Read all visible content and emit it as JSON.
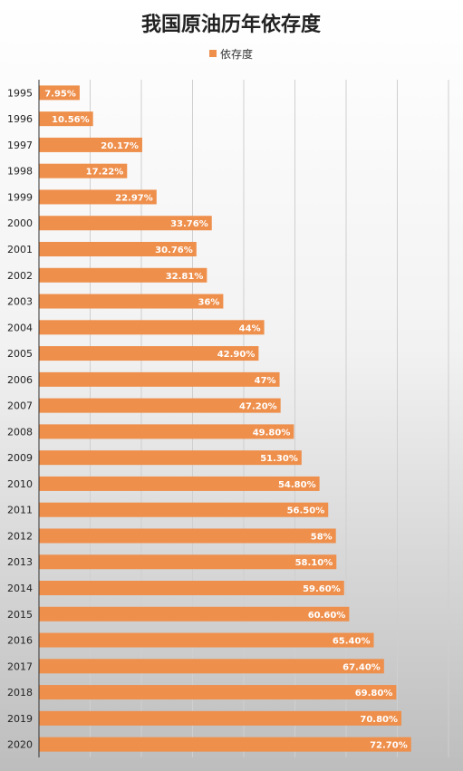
{
  "chart_data": {
    "type": "bar",
    "orientation": "horizontal",
    "title": "我国原油历年依存度",
    "xlabel": "",
    "ylabel": "",
    "legend": {
      "placement": "top",
      "entries": [
        "依存度"
      ]
    },
    "grid": true,
    "xlim": [
      0,
      80
    ],
    "bar_color": "#EE8F4C",
    "categories": [
      "1995",
      "1996",
      "1997",
      "1998",
      "1999",
      "2000",
      "2001",
      "2002",
      "2003",
      "2004",
      "2005",
      "2006",
      "2007",
      "2008",
      "2009",
      "2010",
      "2011",
      "2012",
      "2013",
      "2014",
      "2015",
      "2016",
      "2017",
      "2018",
      "2019",
      "2020"
    ],
    "series": [
      {
        "name": "依存度",
        "values": [
          7.95,
          10.56,
          20.17,
          17.22,
          22.97,
          33.76,
          30.76,
          32.81,
          36,
          44,
          42.9,
          47,
          47.2,
          49.8,
          51.3,
          54.8,
          56.5,
          58,
          58.1,
          59.6,
          60.6,
          65.4,
          67.4,
          69.8,
          70.8,
          72.7
        ],
        "labels": [
          "7.95%",
          "10.56%",
          "20.17%",
          "17.22%",
          "22.97%",
          "33.76%",
          "30.76%",
          "32.81%",
          "36%",
          "44%",
          "42.90%",
          "47%",
          "47.20%",
          "49.80%",
          "51.30%",
          "54.80%",
          "56.50%",
          "58%",
          "58.10%",
          "59.60%",
          "60.60%",
          "65.40%",
          "67.40%",
          "69.80%",
          "70.80%",
          "72.70%"
        ]
      }
    ]
  }
}
